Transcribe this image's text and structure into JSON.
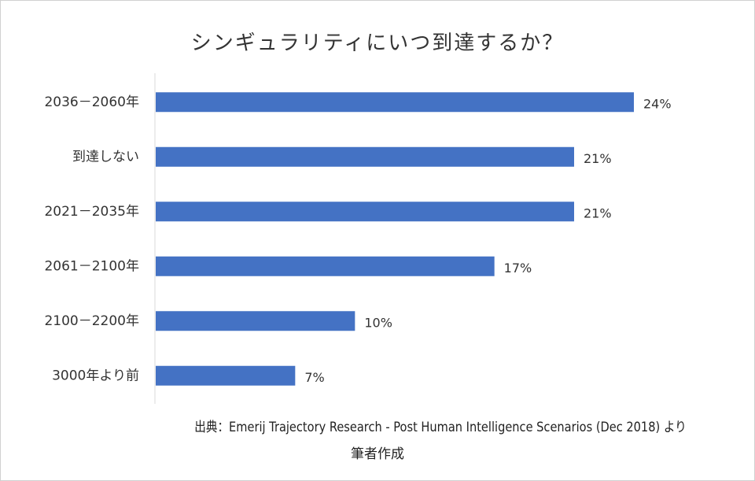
{
  "chart_data": {
    "type": "bar",
    "orientation": "horizontal",
    "title": "シンギュラリティにいつ到達するか？",
    "categories": [
      "2036－2060年",
      "到達しない",
      "2021－2035年",
      "2061－2100年",
      "2100－2200年",
      "3000年より前"
    ],
    "values": [
      24,
      21,
      21,
      17,
      10,
      7
    ],
    "value_labels": [
      "24%",
      "21%",
      "21%",
      "17%",
      "10%",
      "7%"
    ],
    "unit": "%",
    "xlim": [
      0,
      27
    ],
    "grid": false,
    "legend": "none",
    "bar_color": "#4472c4"
  },
  "source": {
    "line1": "出典：Emerij Trajectory Research - Post Human Intelligence Scenarios  (Dec 2018) より",
    "line2": "筆者作成"
  }
}
